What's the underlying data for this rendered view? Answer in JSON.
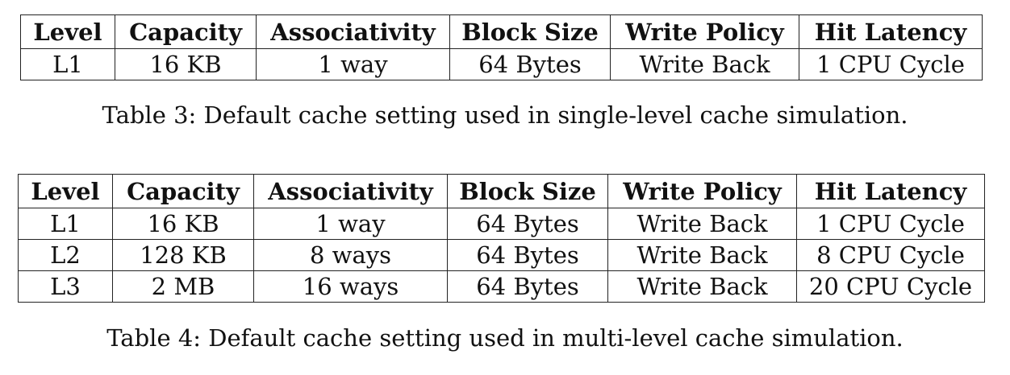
{
  "table3": {
    "headers": [
      "Level",
      "Capacity",
      "Associativity",
      "Block Size",
      "Write Policy",
      "Hit Latency"
    ],
    "rows": [
      [
        "L1",
        "16 KB",
        "1 way",
        "64 Bytes",
        "Write Back",
        "1 CPU Cycle"
      ]
    ],
    "caption": "Table 3: Default cache setting used in single-level cache simulation."
  },
  "table4": {
    "headers": [
      "Level",
      "Capacity",
      "Associativity",
      "Block Size",
      "Write Policy",
      "Hit Latency"
    ],
    "rows": [
      [
        "L1",
        "16 KB",
        "1 way",
        "64 Bytes",
        "Write Back",
        "1 CPU Cycle"
      ],
      [
        "L2",
        "128 KB",
        "8 ways",
        "64 Bytes",
        "Write Back",
        "8 CPU Cycle"
      ],
      [
        "L3",
        "2 MB",
        "16 ways",
        "64 Bytes",
        "Write Back",
        "20 CPU Cycle"
      ]
    ],
    "caption": "Table 4: Default cache setting used in multi-level cache simulation."
  }
}
